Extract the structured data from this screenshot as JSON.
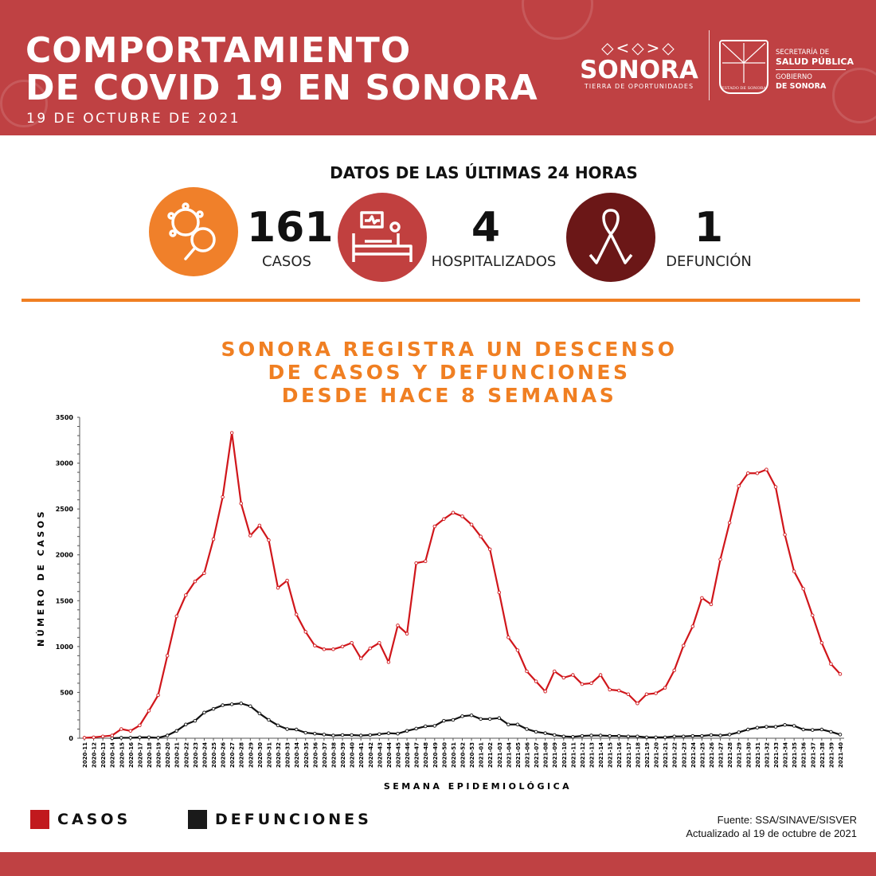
{
  "header": {
    "title_line1": "COMPORTAMIENTO",
    "title_line2": "DE COVID 19 EN SONORA",
    "date": "19 DE OCTUBRE DE 2021",
    "logo_pattern": "◇<◇>◇",
    "logo_word": "SONORA",
    "logo_tagline": "TIERRA DE OPORTUNIDADES",
    "crest_label": "ESTADO DE SONORA",
    "ssp_line1": "SECRETARÍA DE",
    "ssp_line2": "SALUD PÚBLICA",
    "gob_line1": "GOBIERNO",
    "gob_line2": "DE SONORA"
  },
  "stats": {
    "title": "DATOS DE LAS ÚLTIMAS 24 HORAS",
    "items": [
      {
        "value": "161",
        "label": "CASOS",
        "icon": "virus-magnifier-icon",
        "color": "#f0802a"
      },
      {
        "value": "4",
        "label": "HOSPITALIZADOS",
        "icon": "hospital-bed-icon",
        "color": "#c1403f"
      },
      {
        "value": "1",
        "label": "DEFUNCIÓN",
        "icon": "ribbon-icon",
        "color": "#6b1717"
      }
    ]
  },
  "headline": {
    "line1": "SONORA REGISTRA UN DESCENSO",
    "line2": "DE CASOS Y DEFUNCIONES",
    "line3": "DESDE HACE 8 SEMANAS"
  },
  "chart_data": {
    "type": "line",
    "title": "",
    "xlabel": "SEMANA EPIDEMIOLÓGICA",
    "ylabel": "NÚMERO DE CASOS",
    "ylim": [
      0,
      3500
    ],
    "yticks": [
      0,
      500,
      1000,
      1500,
      2000,
      2500,
      3000,
      3500
    ],
    "grid": false,
    "legend": "bottom-left",
    "x": [
      "2020-11",
      "2020-12",
      "2020-13",
      "2020-14",
      "2020-15",
      "2020-16",
      "2020-17",
      "2020-18",
      "2020-19",
      "2020-20",
      "2020-21",
      "2020-22",
      "2020-23",
      "2020-24",
      "2020-25",
      "2020-26",
      "2020-27",
      "2020-28",
      "2020-29",
      "2020-30",
      "2020-31",
      "2020-32",
      "2020-33",
      "2020-34",
      "2020-35",
      "2020-36",
      "2020-37",
      "2020-38",
      "2020-39",
      "2020-40",
      "2020-41",
      "2020-42",
      "2020-43",
      "2020-44",
      "2020-45",
      "2020-46",
      "2020-47",
      "2020-48",
      "2020-49",
      "2020-50",
      "2020-51",
      "2020-52",
      "2020-53",
      "2021-01",
      "2021-02",
      "2021-03",
      "2021-04",
      "2021-05",
      "2021-06",
      "2021-07",
      "2021-08",
      "2021-09",
      "2021-10",
      "2021-11",
      "2021-12",
      "2021-13",
      "2021-14",
      "2021-15",
      "2021-16",
      "2021-17",
      "2021-18",
      "2021-19",
      "2021-20",
      "2021-21",
      "2021-22",
      "2021-23",
      "2021-24",
      "2021-25",
      "2021-26",
      "2021-27",
      "2021-28",
      "2021-29",
      "2021-30",
      "2021-31",
      "2021-32",
      "2021-33",
      "2021-34",
      "2021-35",
      "2021-36",
      "2021-37",
      "2021-38",
      "2021-39",
      "2021-40"
    ],
    "series": [
      {
        "name": "CASOS",
        "color": "#d0161b",
        "values": [
          5,
          10,
          20,
          30,
          100,
          80,
          140,
          300,
          470,
          900,
          1330,
          1560,
          1710,
          1800,
          2170,
          2630,
          3330,
          2560,
          2210,
          2320,
          2160,
          1640,
          1720,
          1350,
          1160,
          1010,
          970,
          970,
          1000,
          1040,
          870,
          980,
          1040,
          830,
          1230,
          1140,
          1910,
          1930,
          2310,
          2390,
          2460,
          2420,
          2330,
          2200,
          2060,
          1590,
          1100,
          960,
          730,
          620,
          510,
          730,
          660,
          690,
          590,
          600,
          690,
          530,
          520,
          480,
          380,
          480,
          490,
          550,
          740,
          1010,
          1220,
          1530,
          1460,
          1950,
          2350,
          2750,
          2890,
          2890,
          2930,
          2740,
          2220,
          1820,
          1630,
          1340,
          1040,
          810,
          700
        ]
      },
      {
        "name": "DEFUNCIONES",
        "color": "#111111",
        "values": [
          null,
          null,
          null,
          0,
          5,
          5,
          10,
          10,
          5,
          30,
          80,
          150,
          190,
          280,
          320,
          360,
          370,
          380,
          350,
          270,
          200,
          140,
          100,
          95,
          60,
          50,
          40,
          30,
          35,
          35,
          30,
          35,
          45,
          55,
          50,
          80,
          105,
          130,
          135,
          190,
          200,
          240,
          250,
          210,
          210,
          220,
          150,
          150,
          100,
          70,
          55,
          35,
          20,
          15,
          25,
          30,
          30,
          25,
          25,
          20,
          20,
          10,
          10,
          10,
          20,
          20,
          25,
          25,
          35,
          30,
          40,
          65,
          95,
          115,
          125,
          125,
          145,
          135,
          95,
          90,
          95,
          70,
          40
        ]
      }
    ]
  },
  "source": {
    "line1": "Fuente: SSA/SINAVE/SISVER",
    "line2": "Actualizado al 19 de octubre de 2021"
  }
}
